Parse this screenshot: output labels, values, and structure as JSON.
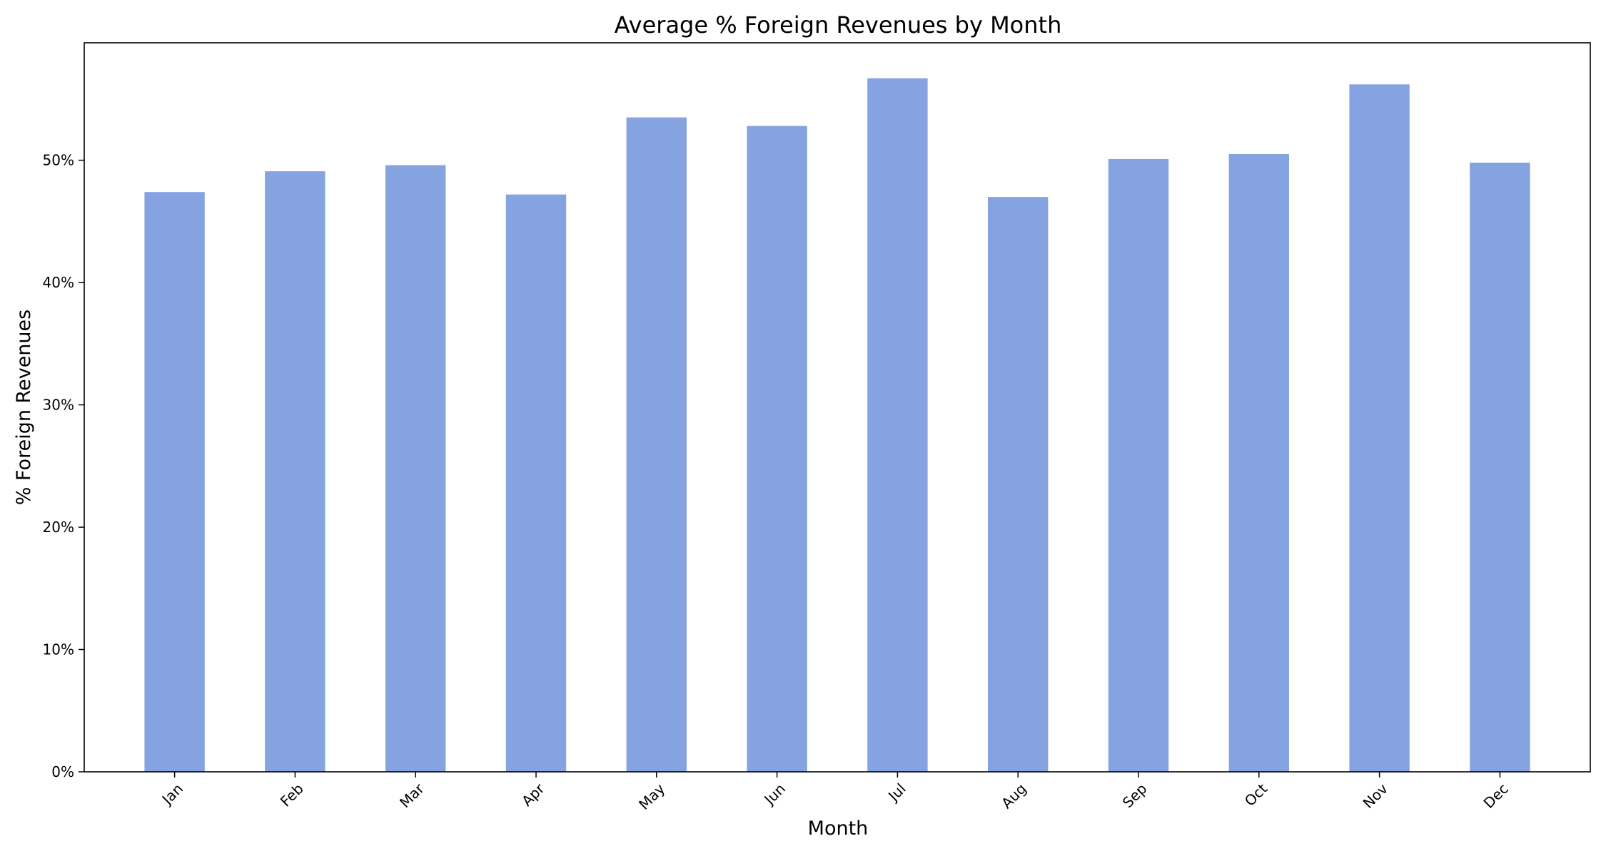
{
  "chart_data": {
    "type": "bar",
    "title": "Average % Foreign Revenues by Month",
    "xlabel": "Month",
    "ylabel": "% Foreign Revenues",
    "categories": [
      "Jan",
      "Feb",
      "Mar",
      "Apr",
      "May",
      "Jun",
      "Jul",
      "Aug",
      "Sep",
      "Oct",
      "Nov",
      "Dec"
    ],
    "values": [
      47.4,
      49.1,
      49.6,
      47.2,
      53.5,
      52.8,
      56.7,
      47.0,
      50.1,
      50.5,
      56.2,
      49.8
    ],
    "ylim": [
      0,
      59.6
    ],
    "yticks": [
      0,
      10,
      20,
      30,
      40,
      50
    ],
    "ytick_labels": [
      "0%",
      "10%",
      "20%",
      "30%",
      "40%",
      "50%"
    ],
    "grid": false,
    "bar_color": "#85a3e0"
  }
}
